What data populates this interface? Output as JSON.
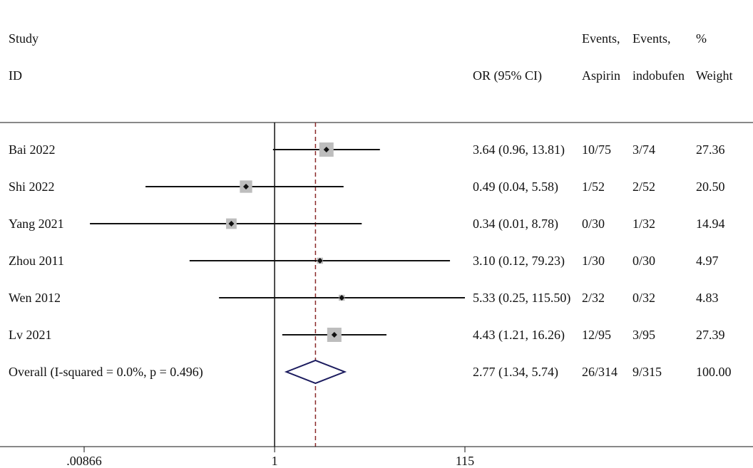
{
  "header": {
    "study_line1": "Study",
    "study_line2": "ID",
    "or_label": "OR (95% CI)",
    "events_aspirin_line1": "Events,",
    "events_aspirin_line2": "Aspirin",
    "events_indobufen_line1": "Events,",
    "events_indobufen_line2": "indobufen",
    "weight_line1": "%",
    "weight_line2": "Weight"
  },
  "chart_data": {
    "type": "forest",
    "x_scale": "log",
    "xlim": [
      0.00866,
      115
    ],
    "null_line": 1,
    "pooled_line": 2.77,
    "ticks": [
      {
        "value": 0.00866,
        "label": ".00866"
      },
      {
        "value": 1,
        "label": "1"
      },
      {
        "value": 115,
        "label": "115"
      }
    ],
    "studies": [
      {
        "id": "Bai 2022",
        "or": 3.64,
        "lo": 0.96,
        "hi": 13.81,
        "or_text": "3.64 (0.96, 13.81)",
        "events_aspirin": "10/75",
        "events_indobufen": "3/74",
        "weight": 27.36,
        "weight_text": "27.36"
      },
      {
        "id": "Shi 2022",
        "or": 0.49,
        "lo": 0.04,
        "hi": 5.58,
        "or_text": "0.49 (0.04, 5.58)",
        "events_aspirin": "1/52",
        "events_indobufen": "2/52",
        "weight": 20.5,
        "weight_text": "20.50"
      },
      {
        "id": "Yang 2021",
        "or": 0.34,
        "lo": 0.01,
        "hi": 8.78,
        "or_text": "0.34 (0.01, 8.78)",
        "events_aspirin": "0/30",
        "events_indobufen": "1/32",
        "weight": 14.94,
        "weight_text": "14.94"
      },
      {
        "id": "Zhou 2011",
        "or": 3.1,
        "lo": 0.12,
        "hi": 79.23,
        "or_text": "3.10 (0.12, 79.23)",
        "events_aspirin": "1/30",
        "events_indobufen": "0/30",
        "weight": 4.97,
        "weight_text": "4.97"
      },
      {
        "id": "Wen 2012",
        "or": 5.33,
        "lo": 0.25,
        "hi": 115.5,
        "or_text": "5.33 (0.25, 115.50)",
        "events_aspirin": "2/32",
        "events_indobufen": "0/32",
        "weight": 4.83,
        "weight_text": "4.83"
      },
      {
        "id": "Lv 2021",
        "or": 4.43,
        "lo": 1.21,
        "hi": 16.26,
        "or_text": "4.43 (1.21, 16.26)",
        "events_aspirin": "12/95",
        "events_indobufen": "3/95",
        "weight": 27.39,
        "weight_text": "27.39"
      }
    ],
    "overall": {
      "label": "Overall  (I-squared = 0.0%, p = 0.496)",
      "or": 2.77,
      "lo": 1.34,
      "hi": 5.74,
      "or_text": "2.77 (1.34, 5.74)",
      "events_aspirin": "26/314",
      "events_indobufen": "9/315",
      "weight_text": "100.00"
    },
    "colors": {
      "ci_line": "#111111",
      "box": "#bdbdbd",
      "point": "#111111",
      "diamond": "#1b1b5e",
      "pooled_line": "#8b2a2a",
      "axis": "#111111"
    }
  }
}
